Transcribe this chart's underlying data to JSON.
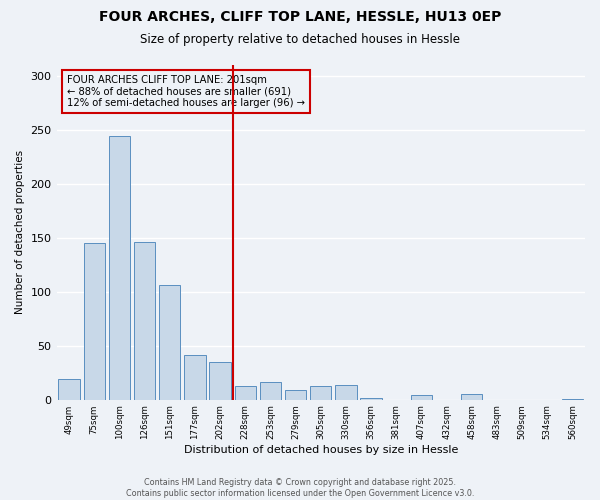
{
  "title": "FOUR ARCHES, CLIFF TOP LANE, HESSLE, HU13 0EP",
  "subtitle": "Size of property relative to detached houses in Hessle",
  "xlabel": "Distribution of detached houses by size in Hessle",
  "ylabel": "Number of detached properties",
  "bar_labels": [
    "49sqm",
    "75sqm",
    "100sqm",
    "126sqm",
    "151sqm",
    "177sqm",
    "202sqm",
    "228sqm",
    "253sqm",
    "279sqm",
    "305sqm",
    "330sqm",
    "356sqm",
    "381sqm",
    "407sqm",
    "432sqm",
    "458sqm",
    "483sqm",
    "509sqm",
    "534sqm",
    "560sqm"
  ],
  "bar_values": [
    19,
    145,
    244,
    146,
    106,
    41,
    35,
    13,
    16,
    9,
    13,
    14,
    2,
    0,
    4,
    0,
    5,
    0,
    0,
    0,
    1
  ],
  "bar_color": "#c8d8e8",
  "bar_edge_color": "#5a8fc0",
  "vline_x_index": 6,
  "vline_color": "#cc0000",
  "annotation_title": "FOUR ARCHES CLIFF TOP LANE: 201sqm",
  "annotation_line1": "← 88% of detached houses are smaller (691)",
  "annotation_line2": "12% of semi-detached houses are larger (96) →",
  "annotation_box_color": "#cc0000",
  "ylim": [
    0,
    310
  ],
  "yticks": [
    0,
    50,
    100,
    150,
    200,
    250,
    300
  ],
  "background_color": "#eef2f7",
  "footer1": "Contains HM Land Registry data © Crown copyright and database right 2025.",
  "footer2": "Contains public sector information licensed under the Open Government Licence v3.0."
}
